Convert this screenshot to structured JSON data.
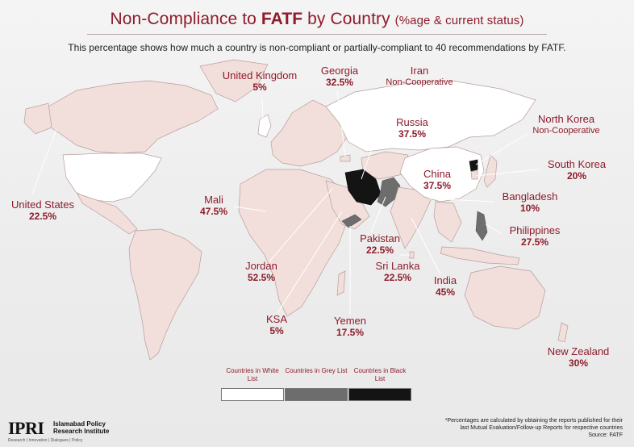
{
  "header": {
    "title_main_a": "Non-Compliance to ",
    "title_main_b": "FATF",
    "title_main_c": " by Country ",
    "title_sub": "(%age & current status)",
    "subtitle": "This percentage shows how much a country is non-compliant or partially-compliant to 40 recommendations by FATF."
  },
  "countries": {
    "uk": {
      "name": "United Kingdom",
      "value": "5%"
    },
    "georgia": {
      "name": "Georgia",
      "value": "32.5%"
    },
    "iran": {
      "name": "Iran",
      "status": "Non-Cooperative"
    },
    "north_korea": {
      "name": "North Korea",
      "status": "Non-Cooperative"
    },
    "russia": {
      "name": "Russia",
      "value": "37.5%"
    },
    "south_korea": {
      "name": "South Korea",
      "value": "20%"
    },
    "china": {
      "name": "China",
      "value": "37.5%"
    },
    "bangladesh": {
      "name": "Bangladesh",
      "value": "10%"
    },
    "philippines": {
      "name": "Philippines",
      "value": "27.5%"
    },
    "usa": {
      "name": "United States",
      "value": "22.5%"
    },
    "mali": {
      "name": "Mali",
      "value": "47.5%"
    },
    "pakistan": {
      "name": "Pakistan",
      "value": "22.5%"
    },
    "jordan": {
      "name": "Jordan",
      "value": "52.5%"
    },
    "sri_lanka": {
      "name": "Sri Lanka",
      "value": "22.5%"
    },
    "india": {
      "name": "India",
      "value": "45%"
    },
    "ksa": {
      "name": "KSA",
      "value": "5%"
    },
    "yemen": {
      "name": "Yemen",
      "value": "17.5%"
    },
    "new_zealand": {
      "name": "New Zealand",
      "value": "30%"
    }
  },
  "legend": {
    "white_list": "Countries in White List",
    "grey_list": "Countries in Grey List",
    "black_list": "Countries in Black List",
    "colors": {
      "white": "#ffffff",
      "grey": "#6d6d6d",
      "black": "#141414",
      "other": "#f2dedb"
    }
  },
  "branding": {
    "logo": "IPRI",
    "name_line1": "Islamabad Policy",
    "name_line2": "Research Institute",
    "tagline": "Research | Innovation | Dialogues | Policy"
  },
  "footnote": {
    "line1": "*Percentages are calculated by obtaining the reports published for their",
    "line2": "last Mutual Evaluation/Follow-up Reports for respective countries",
    "source": "Source: FATF"
  },
  "theme": {
    "accent": "#8e1b2b"
  }
}
